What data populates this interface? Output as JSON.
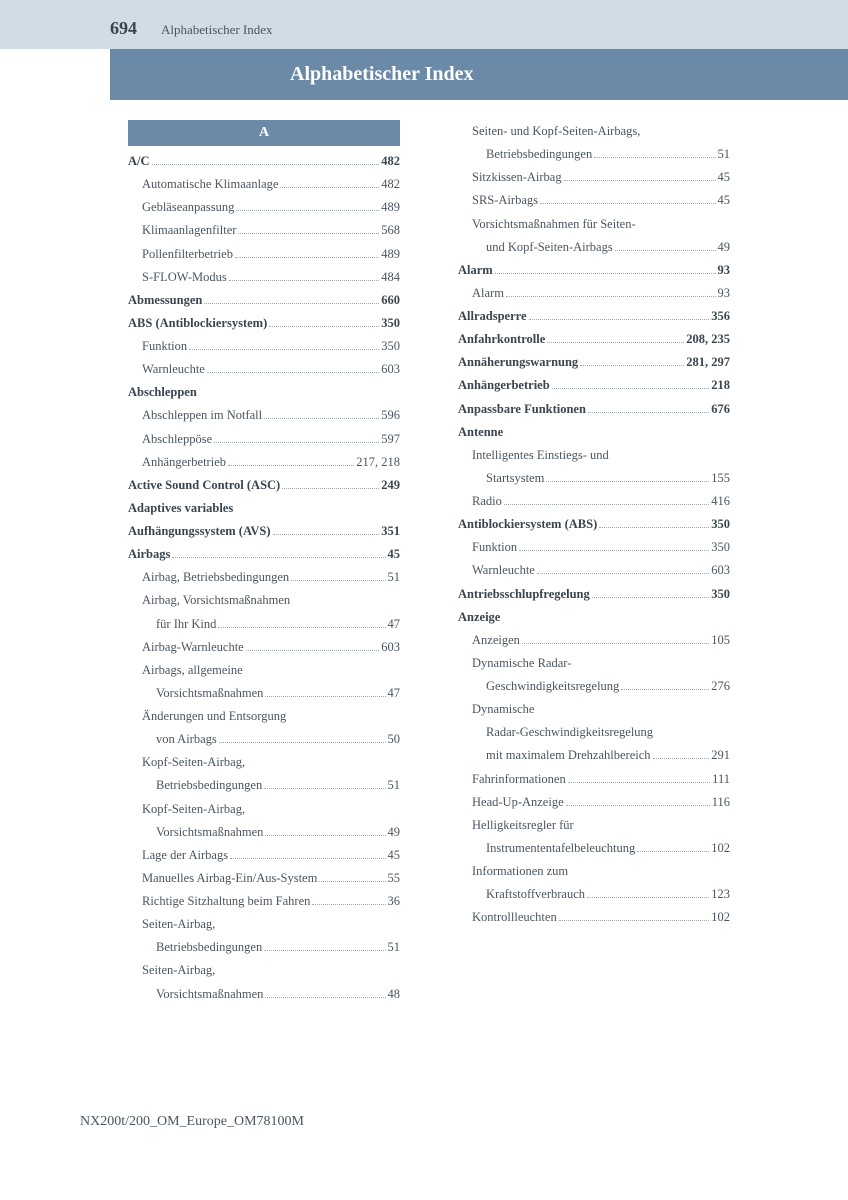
{
  "header": {
    "page_number": "694",
    "label": "Alphabetischer Index"
  },
  "title": "Alphabetischer Index",
  "letter": "A",
  "footer": "NX200t/200_OM_Europe_OM78100M",
  "left_col": [
    {
      "label": "A/C",
      "page": "482",
      "bold": true,
      "level": 1
    },
    {
      "label": "Automatische Klimaanlage",
      "page": "482",
      "level": 2
    },
    {
      "label": "Gebläseanpassung",
      "page": "489",
      "level": 2
    },
    {
      "label": "Klimaanlagenfilter",
      "page": "568",
      "level": 2
    },
    {
      "label": "Pollenfilterbetrieb",
      "page": "489",
      "level": 2
    },
    {
      "label": "S-FLOW-Modus",
      "page": "484",
      "level": 2
    },
    {
      "label": "Abmessungen",
      "page": "660",
      "bold": true,
      "level": 1
    },
    {
      "label": "ABS (Antiblockiersystem)",
      "page": "350",
      "bold": true,
      "level": 1
    },
    {
      "label": "Funktion",
      "page": "350",
      "level": 2
    },
    {
      "label": "Warnleuchte",
      "page": "603",
      "level": 2
    },
    {
      "label": "Abschleppen",
      "nopage": true,
      "bold": true,
      "level": 1
    },
    {
      "label": "Abschleppen im Notfall",
      "page": "596",
      "level": 2
    },
    {
      "label": "Abschleppöse",
      "page": "597",
      "level": 2
    },
    {
      "label": "Anhängerbetrieb",
      "page": "217, 218",
      "level": 2
    },
    {
      "label": "Active Sound Control (ASC)",
      "page": "249",
      "bold": true,
      "level": 1
    },
    {
      "label": "Adaptives variables",
      "nopage": true,
      "bold": true,
      "level": 1
    },
    {
      "label": "Aufhängungssystem (AVS)",
      "page": "351",
      "bold": true,
      "level": 1,
      "indent": 1
    },
    {
      "label": "Airbags",
      "page": "45",
      "bold": true,
      "level": 1
    },
    {
      "label": "Airbag, Betriebsbedingungen",
      "page": "51",
      "level": 2
    },
    {
      "label": "Airbag, Vorsichtsmaßnahmen",
      "nopage": true,
      "level": 2
    },
    {
      "label": "für Ihr Kind",
      "page": "47",
      "level": 3
    },
    {
      "label": "Airbag-Warnleuchte",
      "page": "603",
      "level": 2
    },
    {
      "label": "Airbags, allgemeine",
      "nopage": true,
      "level": 2
    },
    {
      "label": "Vorsichtsmaßnahmen",
      "page": "47",
      "level": 3
    },
    {
      "label": "Änderungen und Entsorgung",
      "nopage": true,
      "level": 2
    },
    {
      "label": "von Airbags",
      "page": "50",
      "level": 3
    },
    {
      "label": "Kopf-Seiten-Airbag,",
      "nopage": true,
      "level": 2
    },
    {
      "label": "Betriebsbedingungen",
      "page": "51",
      "level": 3
    },
    {
      "label": "Kopf-Seiten-Airbag,",
      "nopage": true,
      "level": 2
    },
    {
      "label": "Vorsichtsmaßnahmen",
      "page": "49",
      "level": 3
    },
    {
      "label": "Lage der Airbags",
      "page": "45",
      "level": 2
    },
    {
      "label": "Manuelles Airbag-Ein/Aus-System",
      "page": "55",
      "level": 2
    },
    {
      "label": "Richtige Sitzhaltung beim Fahren",
      "page": "36",
      "level": 2
    },
    {
      "label": "Seiten-Airbag,",
      "nopage": true,
      "level": 2
    },
    {
      "label": "Betriebsbedingungen",
      "page": "51",
      "level": 3
    },
    {
      "label": "Seiten-Airbag,",
      "nopage": true,
      "level": 2
    },
    {
      "label": "Vorsichtsmaßnahmen",
      "page": "48",
      "level": 3
    }
  ],
  "right_col": [
    {
      "label": "Seiten- und Kopf-Seiten-Airbags,",
      "nopage": true,
      "level": 2
    },
    {
      "label": "Betriebsbedingungen",
      "page": "51",
      "level": 3
    },
    {
      "label": "Sitzkissen-Airbag",
      "page": "45",
      "level": 2
    },
    {
      "label": "SRS-Airbags",
      "page": "45",
      "level": 2
    },
    {
      "label": "Vorsichtsmaßnahmen für Seiten-",
      "nopage": true,
      "level": 2
    },
    {
      "label": "und Kopf-Seiten-Airbags",
      "page": "49",
      "level": 3
    },
    {
      "label": "Alarm",
      "page": "93",
      "bold": true,
      "level": 1
    },
    {
      "label": "Alarm",
      "page": "93",
      "level": 2
    },
    {
      "label": "Allradsperre",
      "page": "356",
      "bold": true,
      "level": 1
    },
    {
      "label": "Anfahrkontrolle",
      "page": "208, 235",
      "bold": true,
      "level": 1
    },
    {
      "label": "Annäherungswarnung",
      "page": "281, 297",
      "bold": true,
      "level": 1
    },
    {
      "label": "Anhängerbetrieb",
      "page": "218",
      "bold": true,
      "level": 1
    },
    {
      "label": "Anpassbare Funktionen",
      "page": "676",
      "bold": true,
      "level": 1
    },
    {
      "label": "Antenne",
      "nopage": true,
      "bold": true,
      "level": 1
    },
    {
      "label": "Intelligentes Einstiegs- und",
      "nopage": true,
      "level": 2
    },
    {
      "label": "Startsystem",
      "page": "155",
      "level": 3
    },
    {
      "label": "Radio",
      "page": "416",
      "level": 2
    },
    {
      "label": "Antiblockiersystem (ABS)",
      "page": "350",
      "bold": true,
      "level": 1
    },
    {
      "label": "Funktion",
      "page": "350",
      "level": 2
    },
    {
      "label": "Warnleuchte",
      "page": "603",
      "level": 2
    },
    {
      "label": "Antriebsschlupfregelung",
      "page": "350",
      "bold": true,
      "level": 1
    },
    {
      "label": "Anzeige",
      "nopage": true,
      "bold": true,
      "level": 1
    },
    {
      "label": "Anzeigen",
      "page": "105",
      "level": 2
    },
    {
      "label": "Dynamische Radar-",
      "nopage": true,
      "level": 2
    },
    {
      "label": "Geschwindigkeitsregelung",
      "page": "276",
      "level": 3
    },
    {
      "label": "Dynamische",
      "nopage": true,
      "level": 2
    },
    {
      "label": "Radar-Geschwindigkeitsregelung",
      "nopage": true,
      "level": 3
    },
    {
      "label": "mit maximalem Drehzahlbereich",
      "page": "291",
      "level": 3
    },
    {
      "label": "Fahrinformationen",
      "page": "111",
      "level": 2
    },
    {
      "label": "Head-Up-Anzeige",
      "page": "116",
      "level": 2
    },
    {
      "label": "Helligkeitsregler für",
      "nopage": true,
      "level": 2
    },
    {
      "label": "Instrumententafelbeleuchtung",
      "page": "102",
      "level": 3
    },
    {
      "label": "Informationen zum",
      "nopage": true,
      "level": 2
    },
    {
      "label": "Kraftstoffverbrauch",
      "page": "123",
      "level": 3
    },
    {
      "label": "Kontrollleuchten",
      "page": "102",
      "level": 2
    }
  ]
}
